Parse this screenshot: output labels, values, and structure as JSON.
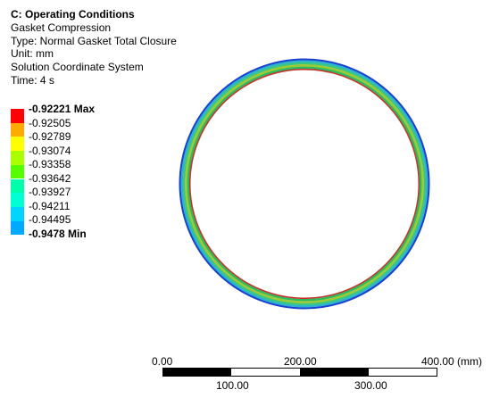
{
  "header": {
    "title": "C: Operating Conditions",
    "lines": [
      "Gasket Compression",
      "Type: Normal Gasket Total Closure",
      "Unit: mm",
      "Solution Coordinate System",
      "Time: 4 s"
    ]
  },
  "legend": {
    "items": [
      {
        "label": "-0.92221 Max",
        "color": "#ff0000",
        "bold": true
      },
      {
        "label": "-0.92505",
        "color": "#ffaa00",
        "bold": false
      },
      {
        "label": "-0.92789",
        "color": "#ffff00",
        "bold": false
      },
      {
        "label": "-0.93074",
        "color": "#aaff00",
        "bold": false
      },
      {
        "label": "-0.93358",
        "color": "#55ff00",
        "bold": false
      },
      {
        "label": "-0.93642",
        "color": "#00ffaa",
        "bold": false
      },
      {
        "label": "-0.93927",
        "color": "#00ffd5",
        "bold": false
      },
      {
        "label": "-0.94211",
        "color": "#00d5ff",
        "bold": false
      },
      {
        "label": "-0.94495",
        "color": "#00aaff",
        "bold": false
      },
      {
        "label": "-0.9478 Min",
        "color": "#0000ff",
        "bold": true
      }
    ]
  },
  "scale_bar": {
    "top_labels": [
      "0.00",
      "200.00",
      "400.00 (mm)"
    ],
    "bottom_labels": [
      "100.00",
      "300.00"
    ]
  },
  "model": {
    "ring_colors": {
      "outer": "#1a3fd0",
      "band_a": "#2bb1cf",
      "band_b": "#39c780",
      "band_c": "#9dc932",
      "band_d": "#2bbb5c",
      "inner": "#c0322a"
    }
  }
}
